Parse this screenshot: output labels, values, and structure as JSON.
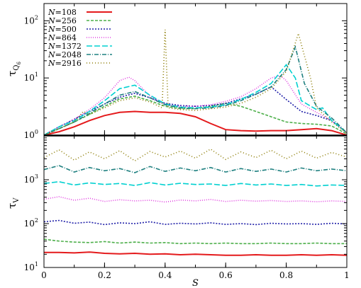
{
  "chart_data": {
    "type": "line",
    "x_label": "S",
    "xlim": [
      0,
      1
    ],
    "x_ticks": [
      "0",
      "0.2",
      "0.4",
      "0.6",
      "0.8",
      "1"
    ],
    "legend_placement": "top-left",
    "panels": [
      {
        "id": "top",
        "ylabel_main": "τ",
        "ylabel_sub": "Q",
        "ylabel_subsub": "6",
        "yscale": "log",
        "ylim": [
          1,
          200
        ],
        "y_ticks": [
          {
            "value": 1,
            "base": "10",
            "exp": "0"
          },
          {
            "value": 10,
            "base": "10",
            "exp": "1"
          },
          {
            "value": 100,
            "base": "10",
            "exp": "2"
          }
        ],
        "series": [
          {
            "name": "108",
            "color": "#e41a1c",
            "dash": "",
            "x": [
              0,
              0.05,
              0.1,
              0.15,
              0.2,
              0.25,
              0.3,
              0.35,
              0.4,
              0.45,
              0.5,
              0.55,
              0.6,
              0.65,
              0.7,
              0.75,
              0.8,
              0.85,
              0.9,
              0.95,
              1.0
            ],
            "y": [
              1.0,
              1.15,
              1.4,
              1.8,
              2.2,
              2.5,
              2.6,
              2.5,
              2.5,
              2.4,
              2.1,
              1.6,
              1.25,
              1.2,
              1.18,
              1.2,
              1.2,
              1.25,
              1.3,
              1.2,
              1.0
            ]
          },
          {
            "name": "256",
            "color": "#4daf4a",
            "dash": "4,2",
            "x": [
              0,
              0.05,
              0.1,
              0.15,
              0.2,
              0.25,
              0.3,
              0.35,
              0.4,
              0.45,
              0.5,
              0.55,
              0.6,
              0.65,
              0.7,
              0.75,
              0.8,
              0.85,
              0.9,
              0.95,
              1.0
            ],
            "y": [
              1.0,
              1.3,
              1.7,
              2.3,
              3.2,
              4.3,
              4.8,
              4.0,
              3.2,
              2.9,
              2.9,
              3.2,
              3.6,
              3.2,
              2.6,
              2.1,
              1.7,
              1.6,
              1.55,
              1.45,
              1.05
            ]
          },
          {
            "name": "500",
            "color": "#1f1fa8",
            "dash": "2,2",
            "x": [
              0,
              0.05,
              0.1,
              0.15,
              0.2,
              0.25,
              0.3,
              0.35,
              0.4,
              0.45,
              0.5,
              0.55,
              0.6,
              0.65,
              0.7,
              0.75,
              0.8,
              0.85,
              0.9,
              0.95,
              1.0
            ],
            "y": [
              1.0,
              1.4,
              1.9,
              2.6,
              3.5,
              4.6,
              5.4,
              4.5,
              3.6,
              3.3,
              3.2,
              3.3,
              3.6,
              4.3,
              5.2,
              7.0,
              4.2,
              2.6,
              2.2,
              1.8,
              1.1
            ]
          },
          {
            "name": "864",
            "color": "#e040e0",
            "dash": "1,2",
            "x": [
              0,
              0.05,
              0.1,
              0.15,
              0.2,
              0.25,
              0.28,
              0.3,
              0.35,
              0.4,
              0.45,
              0.5,
              0.55,
              0.6,
              0.65,
              0.7,
              0.75,
              0.78,
              0.8,
              0.85,
              0.9,
              0.95,
              1.0
            ],
            "y": [
              1.0,
              1.4,
              1.9,
              2.8,
              4.5,
              9.0,
              10.3,
              9.0,
              4.8,
              3.4,
              3.2,
              3.2,
              3.4,
              3.9,
              4.7,
              6.5,
              10.0,
              11.0,
              9.0,
              3.5,
              2.5,
              1.8,
              1.1
            ]
          },
          {
            "name": "1372",
            "color": "#00d0d0",
            "dash": "8,3",
            "x": [
              0,
              0.05,
              0.1,
              0.15,
              0.2,
              0.25,
              0.3,
              0.35,
              0.4,
              0.45,
              0.5,
              0.55,
              0.6,
              0.65,
              0.7,
              0.75,
              0.8,
              0.83,
              0.85,
              0.9,
              0.92,
              0.95,
              1.0
            ],
            "y": [
              1.0,
              1.4,
              1.8,
              2.6,
              4.0,
              6.5,
              7.5,
              5.0,
              3.5,
              3.1,
              3.0,
              3.1,
              3.4,
              4.2,
              5.6,
              8.0,
              17.0,
              10.0,
              4.0,
              2.8,
              3.0,
              1.8,
              1.1
            ]
          },
          {
            "name": "2048",
            "color": "#1f8080",
            "dash": "6,2,1,2",
            "x": [
              0,
              0.05,
              0.1,
              0.15,
              0.2,
              0.25,
              0.3,
              0.35,
              0.4,
              0.45,
              0.5,
              0.55,
              0.6,
              0.65,
              0.7,
              0.75,
              0.8,
              0.83,
              0.86,
              0.9,
              0.95,
              1.0
            ],
            "y": [
              1.0,
              1.3,
              1.7,
              2.4,
              3.5,
              5.0,
              5.8,
              4.5,
              3.4,
              3.0,
              2.9,
              3.0,
              3.3,
              4.0,
              5.2,
              7.0,
              14.0,
              35.0,
              8.0,
              3.2,
              2.0,
              1.1
            ]
          },
          {
            "name": "2916",
            "color": "#8a7a00",
            "dash": "1,3",
            "x": [
              0,
              0.05,
              0.1,
              0.13,
              0.15,
              0.2,
              0.25,
              0.3,
              0.35,
              0.39,
              0.4,
              0.41,
              0.45,
              0.5,
              0.55,
              0.6,
              0.65,
              0.7,
              0.75,
              0.8,
              0.84,
              0.88,
              0.9,
              0.95,
              1.0
            ],
            "y": [
              1.0,
              1.3,
              1.7,
              2.6,
              2.3,
              3.0,
              4.0,
              4.5,
              3.8,
              3.0,
              70.0,
              3.0,
              2.8,
              2.7,
              2.9,
              3.1,
              3.6,
              4.6,
              6.5,
              13.0,
              60.0,
              10.0,
              3.0,
              1.7,
              1.1
            ]
          }
        ]
      },
      {
        "id": "bottom",
        "ylabel_main": "τ",
        "ylabel_sub": "V",
        "ylabel_subsub": "",
        "yscale": "log",
        "ylim": [
          10,
          10000
        ],
        "y_ticks": [
          {
            "value": 10,
            "base": "10",
            "exp": "1"
          },
          {
            "value": 100,
            "base": "10",
            "exp": "2"
          },
          {
            "value": 1000,
            "base": "10",
            "exp": "3"
          }
        ],
        "series": [
          {
            "name": "108",
            "color": "#e41a1c",
            "dash": "",
            "x": [
              0,
              0.05,
              0.1,
              0.15,
              0.2,
              0.25,
              0.3,
              0.35,
              0.4,
              0.45,
              0.5,
              0.55,
              0.6,
              0.65,
              0.7,
              0.75,
              0.8,
              0.85,
              0.9,
              0.95,
              1.0
            ],
            "y": [
              22,
              22,
              21.5,
              22.5,
              21,
              20.5,
              21,
              20,
              20.5,
              19.5,
              20,
              19.5,
              19,
              19,
              19.5,
              19,
              19,
              19.5,
              19,
              19.5,
              19
            ]
          },
          {
            "name": "256",
            "color": "#4daf4a",
            "dash": "4,2",
            "x": [
              0,
              0.05,
              0.1,
              0.15,
              0.2,
              0.25,
              0.3,
              0.35,
              0.4,
              0.45,
              0.5,
              0.55,
              0.6,
              0.65,
              0.7,
              0.75,
              0.8,
              0.85,
              0.9,
              0.95,
              1.0
            ],
            "y": [
              44,
              40,
              38,
              37,
              39,
              36,
              38,
              36,
              37,
              35,
              36,
              35,
              36,
              35,
              35,
              36,
              35,
              35,
              36,
              35,
              35
            ]
          },
          {
            "name": "500",
            "color": "#1f1fa8",
            "dash": "2,2",
            "x": [
              0,
              0.05,
              0.1,
              0.15,
              0.2,
              0.25,
              0.3,
              0.35,
              0.4,
              0.45,
              0.5,
              0.55,
              0.6,
              0.65,
              0.7,
              0.75,
              0.8,
              0.85,
              0.9,
              0.95,
              1.0
            ],
            "y": [
              110,
              118,
              102,
              108,
              95,
              104,
              100,
              110,
              96,
              102,
              98,
              104,
              96,
              100,
              95,
              102,
              98,
              100,
              96,
              102,
              98
            ]
          },
          {
            "name": "864",
            "color": "#e040e0",
            "dash": "1,2",
            "x": [
              0,
              0.05,
              0.1,
              0.15,
              0.2,
              0.25,
              0.3,
              0.35,
              0.4,
              0.45,
              0.5,
              0.55,
              0.6,
              0.65,
              0.7,
              0.75,
              0.8,
              0.85,
              0.9,
              0.95,
              1.0
            ],
            "y": [
              360,
              410,
              340,
              380,
              320,
              350,
              330,
              340,
              310,
              345,
              330,
              355,
              320,
              340,
              325,
              335,
              320,
              330,
              315,
              330,
              320
            ]
          },
          {
            "name": "1372",
            "color": "#00d0d0",
            "dash": "8,3",
            "x": [
              0,
              0.05,
              0.1,
              0.15,
              0.2,
              0.25,
              0.3,
              0.35,
              0.4,
              0.45,
              0.5,
              0.55,
              0.6,
              0.65,
              0.7,
              0.75,
              0.8,
              0.85,
              0.9,
              0.95,
              1.0
            ],
            "y": [
              820,
              900,
              760,
              850,
              780,
              820,
              740,
              860,
              760,
              830,
              780,
              800,
              740,
              820,
              760,
              800,
              740,
              780,
              720,
              760,
              740
            ]
          },
          {
            "name": "2048",
            "color": "#1f8080",
            "dash": "6,2,1,2",
            "x": [
              0,
              0.05,
              0.1,
              0.15,
              0.2,
              0.25,
              0.3,
              0.35,
              0.4,
              0.45,
              0.5,
              0.55,
              0.6,
              0.65,
              0.7,
              0.75,
              0.8,
              0.85,
              0.9,
              0.95,
              1.0
            ],
            "y": [
              1700,
              2100,
              1500,
              1900,
              1600,
              1800,
              1450,
              2000,
              1550,
              1850,
              1600,
              1900,
              1500,
              1800,
              1550,
              1750,
              1500,
              1850,
              1600,
              1750,
              1600
            ]
          },
          {
            "name": "2916",
            "color": "#8a7a00",
            "dash": "1,3",
            "x": [
              0,
              0.05,
              0.1,
              0.15,
              0.2,
              0.25,
              0.3,
              0.35,
              0.4,
              0.45,
              0.5,
              0.55,
              0.6,
              0.65,
              0.7,
              0.75,
              0.8,
              0.85,
              0.9,
              0.95,
              1.0
            ],
            "y": [
              3200,
              4800,
              2800,
              4300,
              3000,
              4600,
              2700,
              4400,
              3300,
              4500,
              3100,
              5000,
              2900,
              4300,
              3200,
              4700,
              3000,
              4500,
              3100,
              4200,
              3300
            ]
          }
        ]
      }
    ]
  },
  "legend": {
    "prefix": "N",
    "equals": "="
  }
}
